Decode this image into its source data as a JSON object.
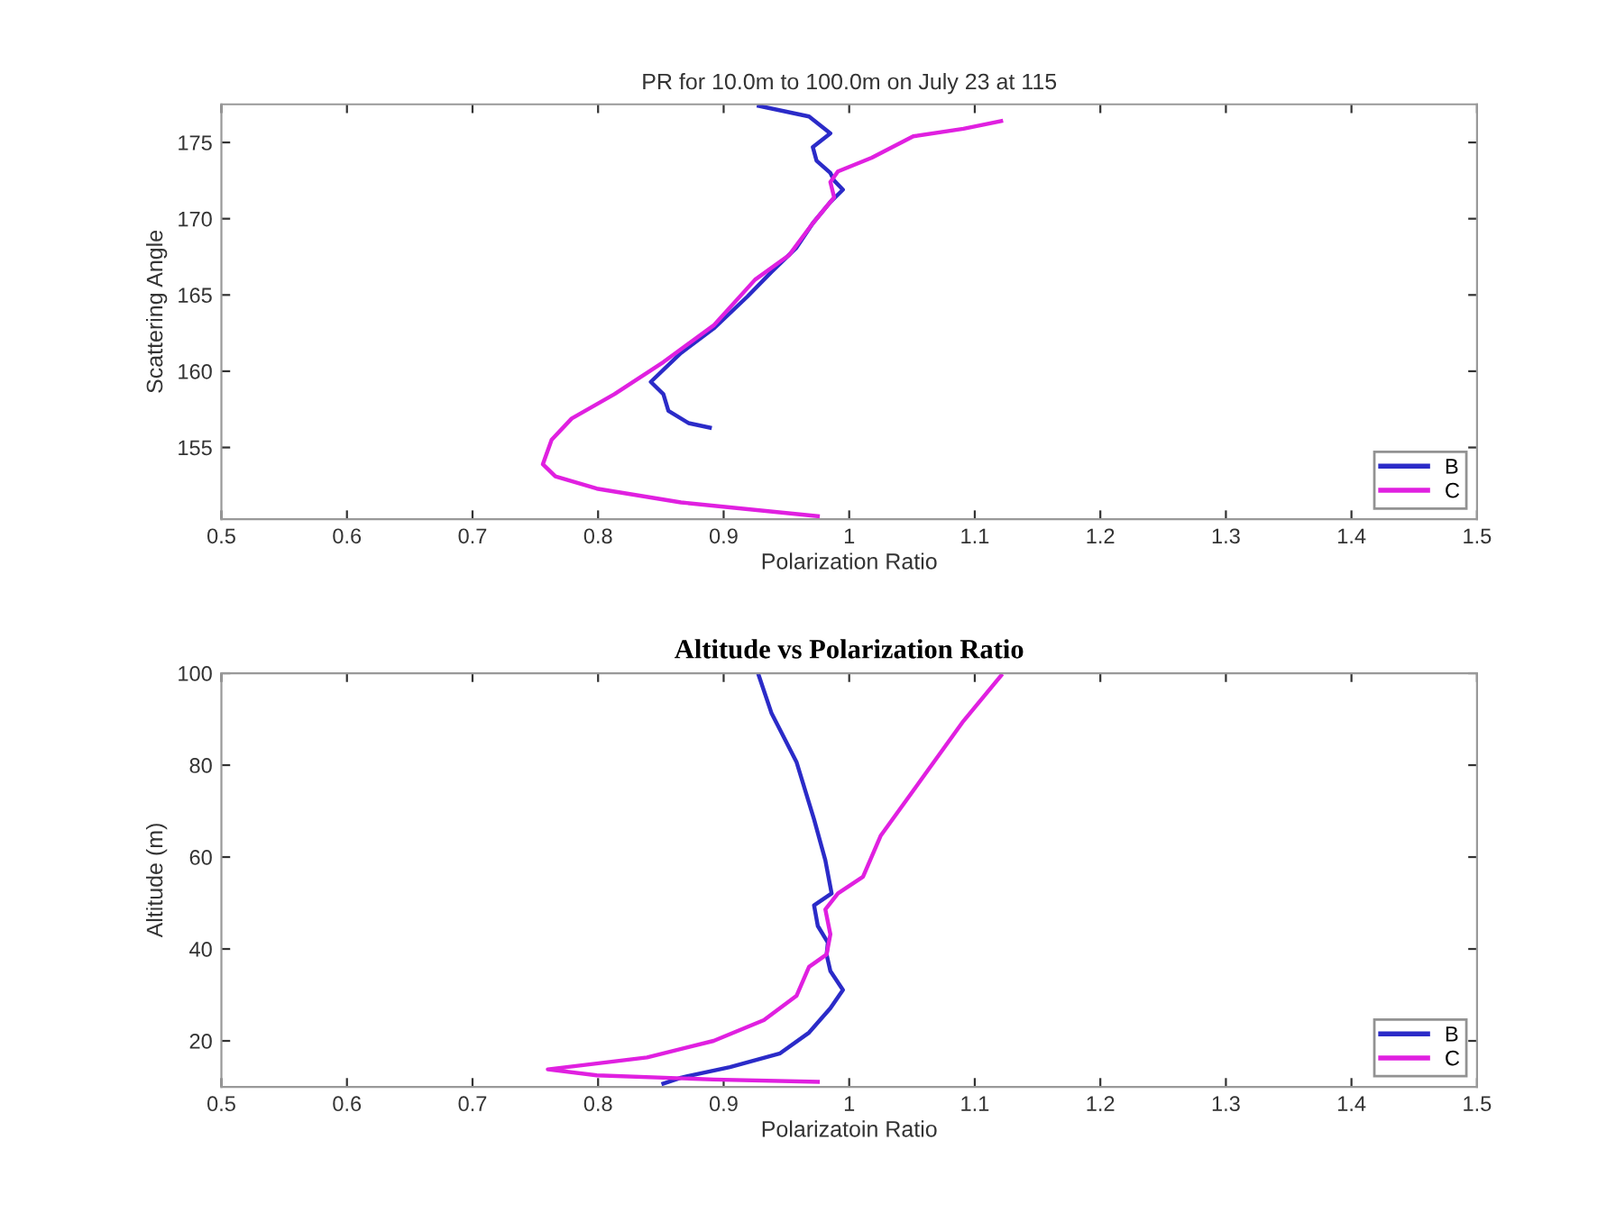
{
  "chart_data": [
    {
      "type": "line",
      "title": "PR for 10.0m to 100.0m on July 23 at 115",
      "xlabel": "Polarization Ratio",
      "ylabel": "Scattering Angle",
      "xlim": [
        0.5,
        1.5
      ],
      "xticks": [
        0.5,
        0.6,
        0.7,
        0.8,
        0.9,
        1,
        1.1,
        1.2,
        1.3,
        1.4,
        1.5
      ],
      "ylim": [
        150.3,
        177.5
      ],
      "yticks": [
        155,
        160,
        165,
        170,
        175
      ],
      "grid": false,
      "legend": "bottom right",
      "series": [
        {
          "name": "B",
          "color": "#2b2bc8",
          "x": [
            0.928,
            0.968,
            0.985,
            0.971,
            0.974,
            0.985,
            0.988,
            0.995,
            0.985,
            0.971,
            0.958,
            0.938,
            0.919,
            0.892,
            0.866,
            0.842,
            0.852,
            0.856,
            0.872,
            0.889
          ],
          "values": [
            177.4,
            176.7,
            175.6,
            174.7,
            173.8,
            173.0,
            172.5,
            171.9,
            171.1,
            169.7,
            168.1,
            166.5,
            164.9,
            162.8,
            161.2,
            159.3,
            158.5,
            157.4,
            156.6,
            156.3
          ]
        },
        {
          "name": "C",
          "color": "#e020e0",
          "x": [
            1.121,
            1.091,
            1.051,
            1.018,
            0.991,
            0.985,
            0.988,
            0.971,
            0.952,
            0.925,
            0.892,
            0.852,
            0.813,
            0.779,
            0.763,
            0.756,
            0.766,
            0.799,
            0.866,
            0.975
          ],
          "values": [
            176.4,
            175.9,
            175.4,
            174.0,
            173.1,
            172.4,
            171.4,
            169.7,
            167.6,
            166.0,
            163.0,
            160.6,
            158.5,
            156.9,
            155.5,
            153.9,
            153.1,
            152.3,
            151.4,
            150.5
          ]
        }
      ]
    },
    {
      "type": "line",
      "title": "Altitude vs Polarization Ratio",
      "xlabel": "Polarizatoin Ratio",
      "ylabel": "Altitude (m)",
      "xlim": [
        0.5,
        1.5
      ],
      "xticks": [
        0.5,
        0.6,
        0.7,
        0.8,
        0.9,
        1,
        1.1,
        1.2,
        1.3,
        1.4,
        1.5
      ],
      "ylim": [
        10,
        100
      ],
      "yticks": [
        20,
        40,
        60,
        80,
        100
      ],
      "grid": false,
      "legend": "bottom right",
      "series": [
        {
          "name": "B",
          "color": "#2b2bc8",
          "x": [
            0.928,
            0.938,
            0.958,
            0.972,
            0.981,
            0.986,
            0.972,
            0.975,
            0.983,
            0.982,
            0.985,
            0.995,
            0.985,
            0.968,
            0.945,
            0.905,
            0.866,
            0.852
          ],
          "values": [
            99.5,
            91.4,
            80.7,
            68.2,
            59.3,
            52.1,
            49.5,
            45,
            41.4,
            38.8,
            35.2,
            31.1,
            27.1,
            21.8,
            17.3,
            14.3,
            12,
            10.7
          ]
        },
        {
          "name": "C",
          "color": "#e020e0",
          "x": [
            1.121,
            1.091,
            1.058,
            1.025,
            1.011,
            0.991,
            0.981,
            0.985,
            0.982,
            0.968,
            0.958,
            0.932,
            0.892,
            0.839,
            0.76,
            0.799,
            0.892,
            0.975
          ],
          "values": [
            99.5,
            89.6,
            77.1,
            64.6,
            55.7,
            52.1,
            48.6,
            43.2,
            38.8,
            36.1,
            29.8,
            24.5,
            20,
            16.4,
            13.8,
            12.5,
            11.6,
            11.1
          ]
        }
      ]
    }
  ]
}
